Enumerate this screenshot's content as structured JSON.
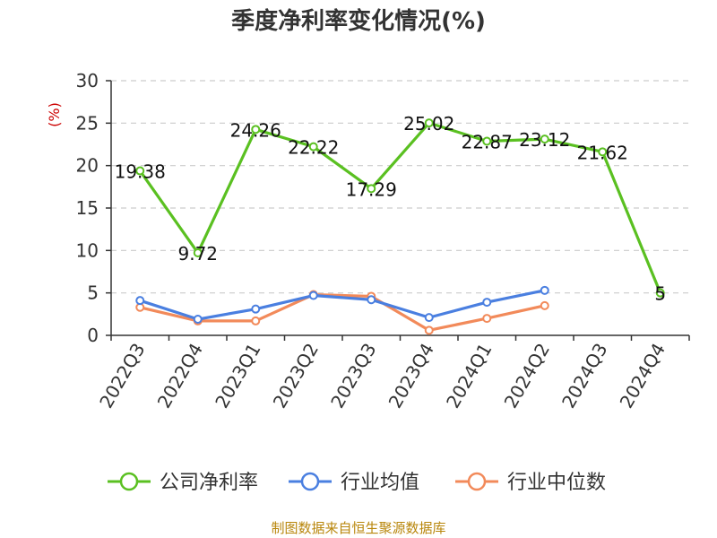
{
  "chart_data": {
    "type": "line",
    "title": "季度净利率变化情况(%)",
    "y_unit": "(%)",
    "categories": [
      "2022Q3",
      "2022Q4",
      "2023Q1",
      "2023Q2",
      "2023Q3",
      "2023Q4",
      "2024Q1",
      "2024Q2",
      "2024Q3",
      "2024Q4"
    ],
    "ylim": [
      0,
      30
    ],
    "yticks": [
      0,
      5,
      10,
      15,
      20,
      25,
      30
    ],
    "grid": true,
    "legend_position": "bottom",
    "series": [
      {
        "name": "公司净利率",
        "color": "#5ac021",
        "values": [
          19.38,
          9.72,
          24.26,
          22.22,
          17.29,
          25.02,
          22.87,
          23.12,
          21.62,
          5
        ],
        "labels": [
          "19.38",
          "9.72",
          "24.26",
          "22.22",
          "17.29",
          "25.02",
          "22.87",
          "23.12",
          "21.62",
          "5"
        ]
      },
      {
        "name": "行业均值",
        "color": "#4a7fe0",
        "values": [
          4.1,
          1.9,
          3.1,
          4.7,
          4.2,
          2.1,
          3.9,
          5.3,
          null,
          null
        ]
      },
      {
        "name": "行业中位数",
        "color": "#f28a5a",
        "values": [
          3.3,
          1.7,
          1.7,
          4.8,
          4.6,
          0.6,
          2.0,
          3.5,
          null,
          null
        ]
      }
    ]
  },
  "source": "制图数据来自恒生聚源数据库"
}
